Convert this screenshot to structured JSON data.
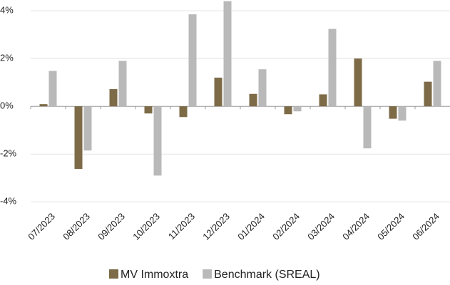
{
  "chart_data": {
    "type": "bar",
    "categories": [
      "07/2023",
      "08/2023",
      "09/2023",
      "10/2023",
      "11/2023",
      "12/2023",
      "01/2024",
      "02/2024",
      "03/2024",
      "04/2024",
      "05/2024",
      "06/2024"
    ],
    "series": [
      {
        "name": "MV Immoxtra",
        "color": "#7d6b47",
        "values": [
          0.09,
          -2.62,
          0.72,
          -0.3,
          -0.45,
          1.2,
          0.52,
          -0.33,
          0.5,
          2.0,
          -0.52,
          1.03
        ]
      },
      {
        "name": "Benchmark (SREAL)",
        "color": "#b9b9b9",
        "values": [
          1.48,
          -1.85,
          1.9,
          -2.9,
          3.85,
          4.4,
          1.55,
          -0.21,
          3.24,
          -1.76,
          -0.6,
          1.9
        ]
      }
    ],
    "ylim": [
      -4.2,
      4.45
    ],
    "yticks": [
      {
        "value": -4,
        "label": "-4%"
      },
      {
        "value": -2,
        "label": "-2%"
      },
      {
        "value": 0,
        "label": "0%"
      },
      {
        "value": 2,
        "label": "2%"
      },
      {
        "value": 4,
        "label": "4%"
      }
    ],
    "grid": true
  }
}
